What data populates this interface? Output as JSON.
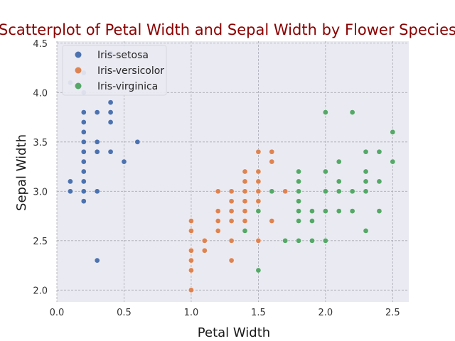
{
  "chart_data": {
    "type": "scatter",
    "title": "Scatterplot of Petal Width and Sepal Width by Flower Species",
    "xlabel": "Petal Width",
    "ylabel": "Sepal Width",
    "xlim": [
      0.0,
      2.62
    ],
    "ylim": [
      1.88,
      4.52
    ],
    "xticks": [
      0.0,
      0.5,
      1.0,
      1.5,
      2.0,
      2.5
    ],
    "xtick_labels": [
      "0.0",
      "0.5",
      "1.0",
      "1.5",
      "2.0",
      "2.5"
    ],
    "yticks": [
      2.0,
      2.5,
      3.0,
      3.5,
      4.0,
      4.5
    ],
    "ytick_labels": [
      "2.0",
      "2.5",
      "3.0",
      "3.5",
      "4.0",
      "4.5"
    ],
    "grid": true,
    "legend_position": "top-left",
    "background": "#eaeaf2",
    "series": [
      {
        "name": "Iris-setosa",
        "color": "#4c72b0",
        "points": [
          [
            0.1,
            4.1
          ],
          [
            0.2,
            4.2
          ],
          [
            0.2,
            4.0
          ],
          [
            0.4,
            4.4
          ],
          [
            0.4,
            3.9
          ],
          [
            0.2,
            3.8
          ],
          [
            0.3,
            3.8
          ],
          [
            0.4,
            3.8
          ],
          [
            0.2,
            3.7
          ],
          [
            0.4,
            3.7
          ],
          [
            0.2,
            3.6
          ],
          [
            0.2,
            3.5
          ],
          [
            0.3,
            3.5
          ],
          [
            0.6,
            3.5
          ],
          [
            0.2,
            3.4
          ],
          [
            0.3,
            3.4
          ],
          [
            0.4,
            3.4
          ],
          [
            0.5,
            3.3
          ],
          [
            0.2,
            3.3
          ],
          [
            0.2,
            3.2
          ],
          [
            0.1,
            3.1
          ],
          [
            0.2,
            3.1
          ],
          [
            0.1,
            3.0
          ],
          [
            0.2,
            3.0
          ],
          [
            0.3,
            3.0
          ],
          [
            0.2,
            2.9
          ],
          [
            0.3,
            2.3
          ]
        ]
      },
      {
        "name": "Iris-versicolor",
        "color": "#dd8452",
        "points": [
          [
            1.6,
            3.4
          ],
          [
            1.5,
            3.4
          ],
          [
            1.6,
            3.3
          ],
          [
            1.4,
            3.2
          ],
          [
            1.5,
            3.2
          ],
          [
            1.4,
            3.1
          ],
          [
            1.5,
            3.1
          ],
          [
            1.2,
            3.0
          ],
          [
            1.3,
            3.0
          ],
          [
            1.4,
            3.0
          ],
          [
            1.5,
            3.0
          ],
          [
            1.7,
            3.0
          ],
          [
            1.3,
            2.9
          ],
          [
            1.4,
            2.9
          ],
          [
            1.5,
            2.9
          ],
          [
            1.2,
            2.8
          ],
          [
            1.3,
            2.8
          ],
          [
            1.4,
            2.8
          ],
          [
            1.5,
            2.8
          ],
          [
            1.2,
            2.7
          ],
          [
            1.3,
            2.7
          ],
          [
            1.4,
            2.7
          ],
          [
            1.6,
            2.7
          ],
          [
            1.0,
            2.7
          ],
          [
            1.0,
            2.6
          ],
          [
            1.2,
            2.6
          ],
          [
            1.3,
            2.5
          ],
          [
            1.1,
            2.5
          ],
          [
            1.5,
            2.5
          ],
          [
            1.0,
            2.4
          ],
          [
            1.1,
            2.4
          ],
          [
            1.0,
            2.3
          ],
          [
            1.3,
            2.3
          ],
          [
            1.0,
            2.2
          ],
          [
            1.0,
            2.0
          ]
        ]
      },
      {
        "name": "Iris-virginica",
        "color": "#55a868",
        "points": [
          [
            2.0,
            3.8
          ],
          [
            2.2,
            3.8
          ],
          [
            2.5,
            3.6
          ],
          [
            2.3,
            3.4
          ],
          [
            2.4,
            3.4
          ],
          [
            2.1,
            3.3
          ],
          [
            2.5,
            3.3
          ],
          [
            1.8,
            3.2
          ],
          [
            2.0,
            3.2
          ],
          [
            2.3,
            3.2
          ],
          [
            1.8,
            3.1
          ],
          [
            2.1,
            3.1
          ],
          [
            2.3,
            3.1
          ],
          [
            2.4,
            3.1
          ],
          [
            1.6,
            3.0
          ],
          [
            1.8,
            3.0
          ],
          [
            2.0,
            3.0
          ],
          [
            2.1,
            3.0
          ],
          [
            2.2,
            3.0
          ],
          [
            2.3,
            3.0
          ],
          [
            1.8,
            2.9
          ],
          [
            1.5,
            2.8
          ],
          [
            1.8,
            2.8
          ],
          [
            1.9,
            2.8
          ],
          [
            2.0,
            2.8
          ],
          [
            2.1,
            2.8
          ],
          [
            2.2,
            2.8
          ],
          [
            2.4,
            2.8
          ],
          [
            1.8,
            2.7
          ],
          [
            1.9,
            2.7
          ],
          [
            1.4,
            2.6
          ],
          [
            2.3,
            2.6
          ],
          [
            1.7,
            2.5
          ],
          [
            1.8,
            2.5
          ],
          [
            1.9,
            2.5
          ],
          [
            2.0,
            2.5
          ],
          [
            1.5,
            2.2
          ]
        ]
      }
    ]
  }
}
